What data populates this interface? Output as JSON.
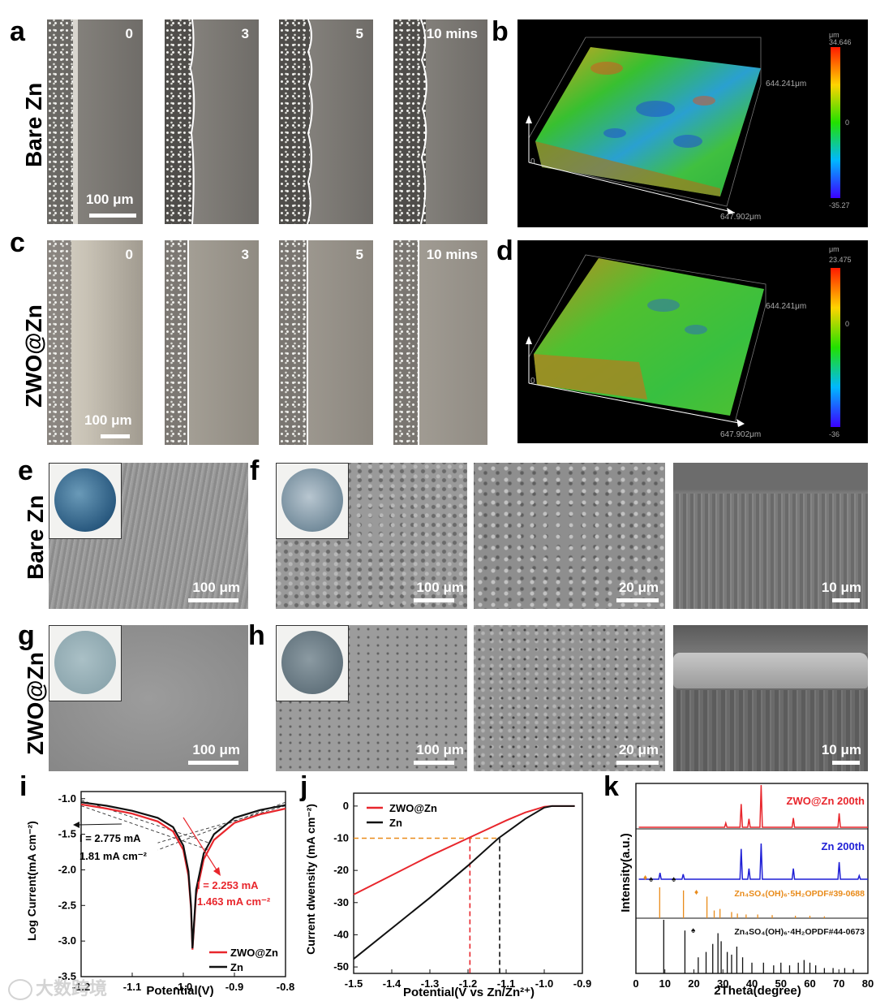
{
  "panel_labels": {
    "a": "a",
    "b": "b",
    "c": "c",
    "d": "d",
    "e": "e",
    "f": "f",
    "g": "g",
    "h": "h",
    "i": "i",
    "j": "j",
    "k": "k"
  },
  "row_labels": {
    "bare": "Bare Zn",
    "zwo": "ZWO@Zn"
  },
  "time_labels": [
    "0",
    "3",
    "5",
    "10 mins"
  ],
  "micro_scalebar": "100 μm",
  "profilometry": {
    "b": {
      "unit": "μm",
      "max": "34.646",
      "mid": "0",
      "min": "-35.27",
      "y_extent": "644.241μm",
      "x_extent": "647.902μm",
      "origin": "0"
    },
    "d": {
      "unit": "μm",
      "max": "23.475",
      "mid": "0",
      "min": "-36",
      "y_extent": "644.241μm",
      "x_extent": "647.902μm",
      "origin": "0"
    }
  },
  "sem_scalebars": {
    "e": "100 μm",
    "f1": "100 μm",
    "f2": "20 μm",
    "f3": "10 μm",
    "g": "100 μm",
    "h1": "100 μm",
    "h2": "20 μm",
    "h3": "10 μm"
  },
  "watermark": "大数跨境",
  "colors": {
    "red": "#e8262c",
    "black": "#111111",
    "blue": "#1f1fd6",
    "orange": "#e98b1a"
  },
  "chart_data": [
    {
      "type": "line",
      "id": "i",
      "xlabel": "Potential(V)",
      "ylabel": "Log Current(mA cm⁻²)",
      "xlim": [
        -1.2,
        -0.8
      ],
      "ylim": [
        -3.5,
        -0.9
      ],
      "xticks": [
        "-1.2",
        "-1.1",
        "-1.0",
        "-0.9",
        "-0.8"
      ],
      "yticks": [
        "-1.0",
        "-1.5",
        "-2.0",
        "-2.5",
        "-3.0",
        "-3.5"
      ],
      "legend": [
        "ZWO@Zn",
        "Zn"
      ],
      "annotations": {
        "zn_current": "I = 2.775 mA",
        "zn_density": "1.81 mA cm⁻²",
        "zwo_current": "I = 2.253 mA",
        "zwo_density": "1.463 mA cm⁻²"
      },
      "series": [
        {
          "name": "ZWO@Zn",
          "color": "#e8262c",
          "x": [
            -1.2,
            -1.15,
            -1.1,
            -1.05,
            -1.02,
            -1.0,
            -0.99,
            -0.985,
            -0.982,
            -0.975,
            -0.96,
            -0.94,
            -0.9,
            -0.85,
            -0.8
          ],
          "y": [
            -1.08,
            -1.14,
            -1.21,
            -1.32,
            -1.46,
            -1.72,
            -2.08,
            -2.55,
            -3.12,
            -2.35,
            -1.85,
            -1.58,
            -1.34,
            -1.22,
            -1.14
          ]
        },
        {
          "name": "Zn",
          "color": "#111111",
          "x": [
            -1.2,
            -1.15,
            -1.1,
            -1.05,
            -1.02,
            -1.0,
            -0.99,
            -0.985,
            -0.982,
            -0.975,
            -0.96,
            -0.94,
            -0.9,
            -0.85,
            -0.8
          ],
          "y": [
            -1.05,
            -1.1,
            -1.17,
            -1.27,
            -1.4,
            -1.66,
            -2.02,
            -2.5,
            -3.1,
            -2.28,
            -1.77,
            -1.5,
            -1.27,
            -1.16,
            -1.09
          ]
        }
      ]
    },
    {
      "type": "line",
      "id": "j",
      "xlabel": "Potential(V vs Zn/Zn²⁺)",
      "ylabel": "Current dwensity (mA cm⁻²)",
      "xlim": [
        -1.5,
        -0.9
      ],
      "ylim": [
        -52,
        4
      ],
      "xticks": [
        "-1.5",
        "-1.4",
        "-1.3",
        "-1.2",
        "-1.1",
        "-1.0",
        "-0.9"
      ],
      "yticks": [
        "0",
        "-10",
        "-20",
        "-30",
        "-40",
        "-50"
      ],
      "legend": [
        "ZWO@Zn",
        "Zn"
      ],
      "guide_y": -10,
      "series": [
        {
          "name": "ZWO@Zn",
          "color": "#e8262c",
          "x": [
            -1.5,
            -1.4,
            -1.3,
            -1.2,
            -1.1,
            -1.05,
            -1.0,
            -0.98,
            -0.92
          ],
          "y": [
            -27.5,
            -21.5,
            -15.5,
            -10,
            -4.5,
            -2,
            -0.2,
            0,
            0
          ]
        },
        {
          "name": "Zn",
          "color": "#111111",
          "x": [
            -1.5,
            -1.4,
            -1.3,
            -1.2,
            -1.12,
            -1.05,
            -1.0,
            -0.98,
            -0.92
          ],
          "y": [
            -47.5,
            -38,
            -28.5,
            -18.5,
            -10,
            -4,
            -0.5,
            0,
            0
          ]
        }
      ],
      "guides": [
        {
          "x": -1.195,
          "color": "#e8262c"
        },
        {
          "x": -1.117,
          "color": "#111111"
        }
      ]
    },
    {
      "type": "line",
      "id": "k",
      "xlabel": "2Theta(degree)",
      "ylabel": "Intensity(a.u.)",
      "xlim": [
        0,
        80
      ],
      "xticks": [
        "0",
        "10",
        "20",
        "30",
        "40",
        "50",
        "60",
        "70",
        "80"
      ],
      "labels": [
        "ZWO@Zn 200th",
        "Zn 200th",
        "Zn₄SO₄(OH)₆·5H₂OPDF#39-0688",
        "Zn₄SO₄(OH)₆·4H₂OPDF#44-0673"
      ],
      "series": [
        {
          "name": "ZWO@Zn 200th",
          "color": "#e8262c",
          "peaks": [
            [
              36.3,
              0.55
            ],
            [
              39,
              0.2
            ],
            [
              43.2,
              1
            ],
            [
              54.3,
              0.22
            ],
            [
              70.1,
              0.33
            ],
            [
              31,
              0.1
            ]
          ]
        },
        {
          "name": "Zn 200th",
          "color": "#1f1fd6",
          "peaks": [
            [
              8.3,
              0.18
            ],
            [
              16.3,
              0.14
            ],
            [
              36.3,
              0.85
            ],
            [
              39,
              0.3
            ],
            [
              43.2,
              1
            ],
            [
              54.3,
              0.3
            ],
            [
              70.1,
              0.48
            ],
            [
              77,
              0.1
            ]
          ]
        },
        {
          "name": "Zn₄SO₄(OH)₆·5H₂OPDF#39-0688",
          "color": "#e98b1a",
          "peaks": [
            [
              8.2,
              1
            ],
            [
              16.4,
              0.9
            ],
            [
              24.5,
              0.7
            ],
            [
              27,
              0.25
            ],
            [
              29,
              0.3
            ],
            [
              33,
              0.2
            ],
            [
              35,
              0.15
            ],
            [
              38,
              0.12
            ],
            [
              42,
              0.12
            ],
            [
              47,
              0.1
            ],
            [
              55,
              0.08
            ],
            [
              60,
              0.08
            ],
            [
              65,
              0.06
            ]
          ]
        },
        {
          "name": "Zn₄SO₄(OH)₆·4H₂OPDF#44-0673",
          "color": "#111111",
          "peaks": [
            [
              9.6,
              1
            ],
            [
              16.9,
              0.8
            ],
            [
              21.5,
              0.3
            ],
            [
              24.2,
              0.4
            ],
            [
              26.5,
              0.55
            ],
            [
              28.3,
              0.75
            ],
            [
              29.4,
              0.6
            ],
            [
              31.5,
              0.4
            ],
            [
              33,
              0.35
            ],
            [
              34.8,
              0.5
            ],
            [
              36.8,
              0.3
            ],
            [
              40,
              0.2
            ],
            [
              44,
              0.2
            ],
            [
              47.5,
              0.15
            ],
            [
              50,
              0.2
            ],
            [
              53,
              0.15
            ],
            [
              56,
              0.2
            ],
            [
              58,
              0.25
            ],
            [
              60,
              0.2
            ],
            [
              62,
              0.15
            ],
            [
              65,
              0.1
            ],
            [
              68,
              0.1
            ],
            [
              72,
              0.1
            ],
            [
              75,
              0.08
            ]
          ]
        }
      ]
    }
  ]
}
